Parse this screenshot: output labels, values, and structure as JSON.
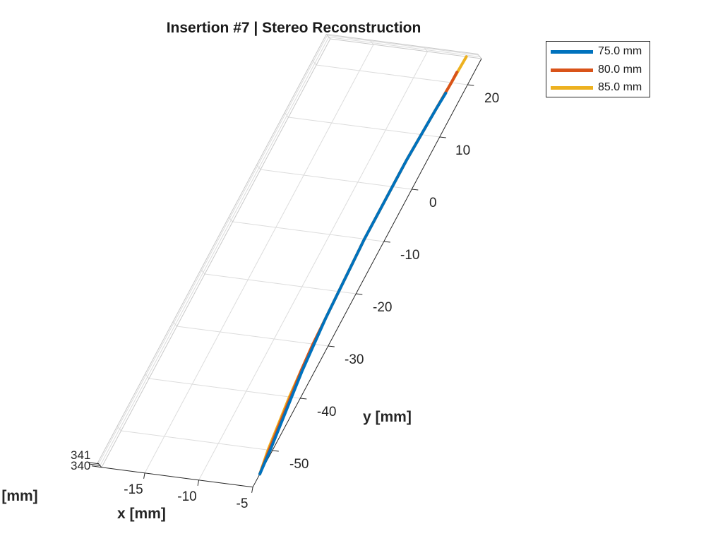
{
  "chart_data": {
    "type": "line",
    "title": "Insertion #7 | Stereo Reconstruction",
    "xlabel": "x [mm]",
    "ylabel": "y [mm]",
    "zlabel": "z [mm]",
    "x_ticks": [
      "-15",
      "-10",
      "-5"
    ],
    "y_ticks": [
      "-50",
      "-40",
      "-30",
      "-20",
      "-10",
      "0",
      "10",
      "20"
    ],
    "z_ticks": [
      "341",
      "340"
    ],
    "xlim": [
      -19,
      -5
    ],
    "ylim": [
      -57,
      25
    ],
    "grid": true,
    "legend_position": "top-right",
    "series": [
      {
        "name": "75.0 mm",
        "color": "#0072BD",
        "points": [
          {
            "x": -5.0,
            "y": -54.5
          },
          {
            "x": -5.2,
            "y": -50
          },
          {
            "x": -5.5,
            "y": -45
          },
          {
            "x": -5.8,
            "y": -40
          },
          {
            "x": -6.1,
            "y": -35
          },
          {
            "x": -6.3,
            "y": -30
          },
          {
            "x": -6.5,
            "y": -25
          },
          {
            "x": -6.6,
            "y": -20
          },
          {
            "x": -6.7,
            "y": -15
          },
          {
            "x": -6.8,
            "y": -10
          },
          {
            "x": -6.8,
            "y": -5
          },
          {
            "x": -6.8,
            "y": 0
          },
          {
            "x": -6.8,
            "y": 5
          },
          {
            "x": -6.7,
            "y": 10
          },
          {
            "x": -6.6,
            "y": 15
          },
          {
            "x": -6.5,
            "y": 18
          }
        ]
      },
      {
        "name": "80.0 mm",
        "color": "#D95319",
        "points": [
          {
            "x": -5.0,
            "y": -54.5
          },
          {
            "x": -5.3,
            "y": -50
          },
          {
            "x": -5.6,
            "y": -45
          },
          {
            "x": -5.9,
            "y": -40
          },
          {
            "x": -6.2,
            "y": -35
          },
          {
            "x": -6.4,
            "y": -30
          },
          {
            "x": -6.5,
            "y": -25
          },
          {
            "x": -6.6,
            "y": -20
          },
          {
            "x": -6.7,
            "y": -15
          },
          {
            "x": -6.8,
            "y": -10
          },
          {
            "x": -6.8,
            "y": -5
          },
          {
            "x": -6.8,
            "y": 0
          },
          {
            "x": -6.8,
            "y": 5
          },
          {
            "x": -6.7,
            "y": 10
          },
          {
            "x": -6.6,
            "y": 15
          },
          {
            "x": -6.5,
            "y": 20
          },
          {
            "x": -6.5,
            "y": 22
          }
        ]
      },
      {
        "name": "85.0 mm",
        "color": "#EDB120",
        "points": [
          {
            "x": -5.0,
            "y": -54.5
          },
          {
            "x": -5.4,
            "y": -50
          },
          {
            "x": -5.7,
            "y": -45
          },
          {
            "x": -6.0,
            "y": -40
          },
          {
            "x": -6.2,
            "y": -35
          },
          {
            "x": -6.4,
            "y": -30
          },
          {
            "x": -6.5,
            "y": -25
          },
          {
            "x": -6.6,
            "y": -20
          },
          {
            "x": -6.7,
            "y": -15
          },
          {
            "x": -6.8,
            "y": -10
          },
          {
            "x": -6.8,
            "y": -5
          },
          {
            "x": -6.8,
            "y": 0
          },
          {
            "x": -6.8,
            "y": 5
          },
          {
            "x": -6.7,
            "y": 10
          },
          {
            "x": -6.6,
            "y": 15
          },
          {
            "x": -6.5,
            "y": 20
          },
          {
            "x": -6.4,
            "y": 25
          }
        ]
      }
    ]
  }
}
